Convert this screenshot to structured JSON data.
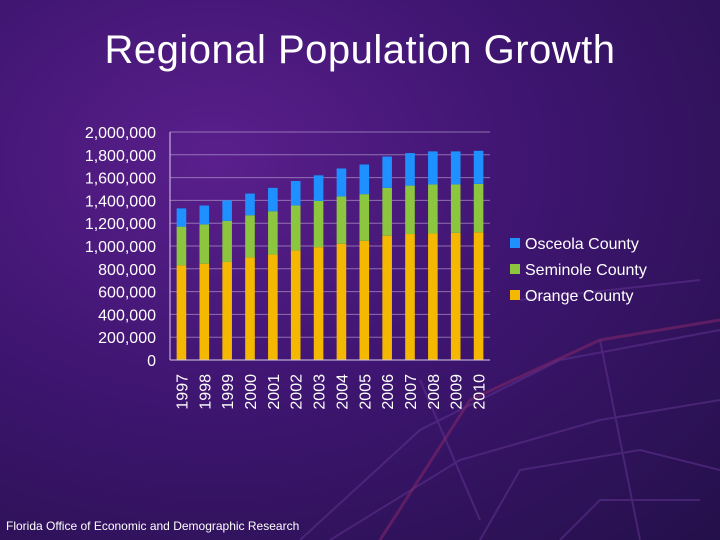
{
  "slide": {
    "title": "Regional Population Growth",
    "footer": "Florida Office of Economic and Demographic Research"
  },
  "colors": {
    "orange": "#f5b800",
    "seminole": "#8cc63f",
    "osceola": "#1e90ff",
    "text": "#ffffff"
  },
  "chart_data": {
    "type": "bar",
    "stacked": true,
    "title": "",
    "xlabel": "",
    "ylabel": "",
    "ylim": [
      0,
      2000000
    ],
    "yticks": [
      0,
      200000,
      400000,
      600000,
      800000,
      1000000,
      1200000,
      1400000,
      1600000,
      1800000,
      2000000
    ],
    "ytick_labels": [
      "0",
      "200,000",
      "400,000",
      "600,000",
      "800,000",
      "1,000,000",
      "1,200,000",
      "1,400,000",
      "1,600,000",
      "1,800,000",
      "2,000,000"
    ],
    "grid": true,
    "legend_position": "right",
    "categories": [
      "1997",
      "1998",
      "1999",
      "2000",
      "2001",
      "2002",
      "2003",
      "2004",
      "2005",
      "2006",
      "2007",
      "2008",
      "2009",
      "2010"
    ],
    "series": [
      {
        "name": "Orange County",
        "color": "#f5b800",
        "values": [
          830000,
          845000,
          860000,
          900000,
          925000,
          960000,
          990000,
          1020000,
          1045000,
          1090000,
          1105000,
          1110000,
          1115000,
          1120000
        ]
      },
      {
        "name": "Seminole County",
        "color": "#8cc63f",
        "values": [
          340000,
          345000,
          360000,
          370000,
          380000,
          395000,
          405000,
          415000,
          410000,
          420000,
          425000,
          430000,
          425000,
          425000
        ]
      },
      {
        "name": "Osceola County",
        "color": "#1e90ff",
        "values": [
          160000,
          165000,
          180000,
          190000,
          205000,
          215000,
          225000,
          245000,
          260000,
          275000,
          285000,
          290000,
          290000,
          290000
        ]
      }
    ],
    "legend_order": [
      "Osceola County",
      "Seminole County",
      "Orange County"
    ]
  }
}
